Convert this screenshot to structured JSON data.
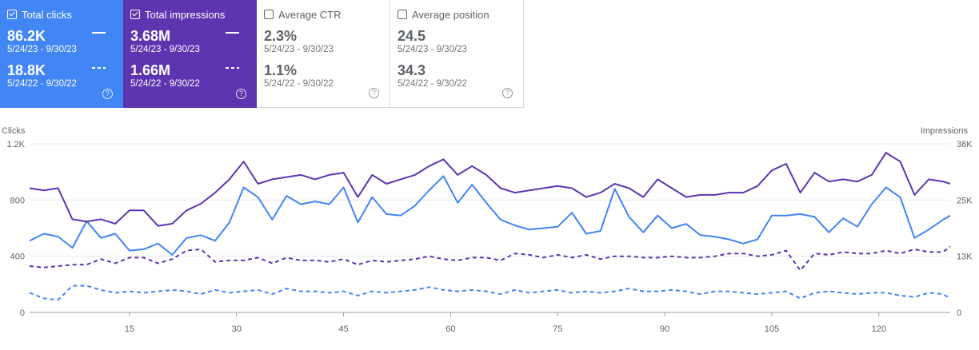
{
  "cards": [
    {
      "label": "Total clicks",
      "checked": true,
      "current": {
        "value": "86.2K",
        "range": "5/24/23 - 9/30/23"
      },
      "previous": {
        "value": "18.8K",
        "range": "5/24/22 - 9/30/22"
      },
      "help": "?",
      "color": "#4285f4"
    },
    {
      "label": "Total impressions",
      "checked": true,
      "current": {
        "value": "3.68M",
        "range": "5/24/23 - 9/30/23"
      },
      "previous": {
        "value": "1.66M",
        "range": "5/24/22 - 9/30/22"
      },
      "help": "?",
      "color": "#5e35b1"
    },
    {
      "label": "Average CTR",
      "checked": false,
      "current": {
        "value": "2.3%",
        "range": "5/24/23 - 9/30/23"
      },
      "previous": {
        "value": "1.1%",
        "range": "5/24/22 - 9/30/22"
      },
      "help": "?"
    },
    {
      "label": "Average position",
      "checked": false,
      "current": {
        "value": "24.5",
        "range": "5/24/23 - 9/30/23"
      },
      "previous": {
        "value": "34.3",
        "range": "5/24/22 - 9/30/22"
      },
      "help": "?"
    }
  ],
  "chart_data": {
    "type": "line",
    "ylabel": "Clicks",
    "y2label": "Impressions",
    "ylim": [
      0,
      1200
    ],
    "y2lim": [
      0,
      38000
    ],
    "yticks": [
      "0",
      "400",
      "800",
      "1.2K"
    ],
    "y2ticks": [
      "0",
      "13K",
      "25K",
      "38K"
    ],
    "xlim": [
      1,
      130
    ],
    "xticks": [
      15,
      30,
      45,
      60,
      75,
      90,
      105,
      120
    ],
    "grid": true,
    "series": [
      {
        "axis": "left",
        "style": "solid",
        "color": "#4285f4",
        "x": [
          1,
          3,
          5,
          7,
          9,
          11,
          13,
          15,
          17,
          19,
          21,
          23,
          25,
          27,
          29,
          31,
          33,
          35,
          37,
          39,
          41,
          43,
          45,
          47,
          49,
          51,
          53,
          55,
          57,
          59,
          61,
          63,
          65,
          67,
          69,
          71,
          73,
          75,
          77,
          79,
          81,
          83,
          85,
          87,
          89,
          91,
          93,
          95,
          97,
          99,
          101,
          103,
          105,
          107,
          109,
          111,
          113,
          115,
          117,
          119,
          121,
          123,
          125,
          127,
          129,
          130
        ],
        "values": [
          510,
          560,
          540,
          460,
          650,
          530,
          560,
          440,
          450,
          490,
          410,
          530,
          550,
          510,
          640,
          890,
          820,
          660,
          830,
          770,
          790,
          770,
          890,
          640,
          820,
          700,
          690,
          760,
          870,
          970,
          780,
          910,
          780,
          660,
          620,
          590,
          600,
          610,
          710,
          560,
          580,
          880,
          680,
          570,
          690,
          600,
          630,
          550,
          540,
          520,
          490,
          520,
          690,
          690,
          700,
          680,
          570,
          670,
          610,
          770,
          890,
          820,
          530,
          590,
          660,
          690
        ]
      },
      {
        "axis": "right",
        "style": "solid",
        "color": "#5e35b1",
        "x": [
          1,
          3,
          5,
          7,
          9,
          11,
          13,
          15,
          17,
          19,
          21,
          23,
          25,
          27,
          29,
          31,
          33,
          35,
          37,
          39,
          41,
          43,
          45,
          47,
          49,
          51,
          53,
          55,
          57,
          59,
          61,
          63,
          65,
          67,
          69,
          71,
          73,
          75,
          77,
          79,
          81,
          83,
          85,
          87,
          89,
          91,
          93,
          95,
          97,
          99,
          101,
          103,
          105,
          107,
          109,
          111,
          113,
          115,
          117,
          119,
          121,
          123,
          125,
          127,
          129,
          130
        ],
        "values": [
          28000,
          27500,
          28000,
          21000,
          20500,
          21000,
          20000,
          23000,
          23000,
          19500,
          20000,
          23000,
          24500,
          27000,
          30000,
          34000,
          29000,
          30000,
          30500,
          31000,
          30000,
          31000,
          31500,
          26000,
          31000,
          29000,
          30000,
          31000,
          33000,
          34500,
          31000,
          33000,
          31000,
          28000,
          27000,
          27500,
          28000,
          28500,
          28000,
          26000,
          27000,
          29000,
          28000,
          26000,
          30000,
          28000,
          26000,
          26500,
          26500,
          27000,
          27000,
          28500,
          32000,
          33500,
          27000,
          31500,
          29500,
          30000,
          29500,
          31000,
          36000,
          34000,
          26500,
          30000,
          29500,
          29000
        ]
      },
      {
        "axis": "left",
        "style": "dashed",
        "color": "#5e35b1",
        "x": [
          1,
          3,
          5,
          7,
          9,
          11,
          13,
          15,
          17,
          19,
          21,
          23,
          25,
          27,
          29,
          31,
          33,
          35,
          37,
          39,
          41,
          43,
          45,
          47,
          49,
          51,
          53,
          55,
          57,
          59,
          61,
          63,
          65,
          67,
          69,
          71,
          73,
          75,
          77,
          79,
          81,
          83,
          85,
          87,
          89,
          91,
          93,
          95,
          97,
          99,
          101,
          103,
          105,
          107,
          109,
          111,
          113,
          115,
          117,
          119,
          121,
          123,
          125,
          127,
          129,
          130
        ],
        "values": [
          330,
          320,
          330,
          340,
          340,
          380,
          350,
          390,
          390,
          350,
          380,
          440,
          450,
          360,
          370,
          370,
          390,
          350,
          390,
          370,
          370,
          360,
          380,
          340,
          370,
          360,
          370,
          380,
          400,
          380,
          370,
          390,
          390,
          370,
          420,
          410,
          390,
          410,
          390,
          410,
          380,
          400,
          400,
          390,
          390,
          400,
          390,
          390,
          400,
          420,
          420,
          400,
          410,
          440,
          300,
          420,
          410,
          430,
          420,
          420,
          440,
          420,
          450,
          430,
          430,
          470
        ]
      },
      {
        "axis": "left",
        "style": "dashed",
        "color": "#4285f4",
        "x": [
          1,
          3,
          5,
          7,
          9,
          11,
          13,
          15,
          17,
          19,
          21,
          23,
          25,
          27,
          29,
          31,
          33,
          35,
          37,
          39,
          41,
          43,
          45,
          47,
          49,
          51,
          53,
          55,
          57,
          59,
          61,
          63,
          65,
          67,
          69,
          71,
          73,
          75,
          77,
          79,
          81,
          83,
          85,
          87,
          89,
          91,
          93,
          95,
          97,
          99,
          101,
          103,
          105,
          107,
          109,
          111,
          113,
          115,
          117,
          119,
          121,
          123,
          125,
          127,
          129,
          130
        ],
        "values": [
          140,
          100,
          90,
          190,
          190,
          160,
          140,
          150,
          140,
          150,
          160,
          150,
          130,
          160,
          140,
          150,
          160,
          130,
          170,
          150,
          150,
          140,
          150,
          120,
          150,
          140,
          150,
          160,
          180,
          160,
          150,
          160,
          150,
          130,
          160,
          140,
          150,
          160,
          140,
          150,
          140,
          150,
          170,
          150,
          150,
          160,
          150,
          130,
          150,
          150,
          140,
          130,
          140,
          150,
          100,
          140,
          150,
          140,
          130,
          140,
          140,
          120,
          110,
          140,
          130,
          100
        ]
      }
    ]
  }
}
